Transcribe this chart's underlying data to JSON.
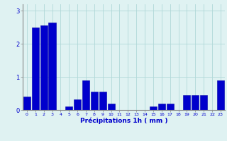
{
  "categories": [
    0,
    1,
    2,
    3,
    4,
    5,
    6,
    7,
    8,
    9,
    10,
    11,
    12,
    13,
    14,
    15,
    16,
    17,
    18,
    19,
    20,
    21,
    22,
    23
  ],
  "values": [
    0.4,
    2.5,
    2.55,
    2.65,
    0.0,
    0.1,
    0.32,
    0.9,
    0.55,
    0.55,
    0.2,
    0.0,
    0.0,
    0.0,
    0.0,
    0.1,
    0.2,
    0.2,
    0.0,
    0.45,
    0.45,
    0.45,
    0.0,
    0.9
  ],
  "bar_color": "#0000cc",
  "bar_edge_color": "#0000aa",
  "background_color": "#dff2f2",
  "grid_color": "#b0d8d8",
  "xlabel": "Précipitations 1h ( mm )",
  "xlabel_color": "#0000cc",
  "tick_color": "#0000cc",
  "axis_color": "#888888",
  "ylim": [
    0,
    3.2
  ],
  "yticks": [
    0,
    1,
    2,
    3
  ],
  "figsize": [
    3.2,
    2.0
  ],
  "dpi": 100
}
